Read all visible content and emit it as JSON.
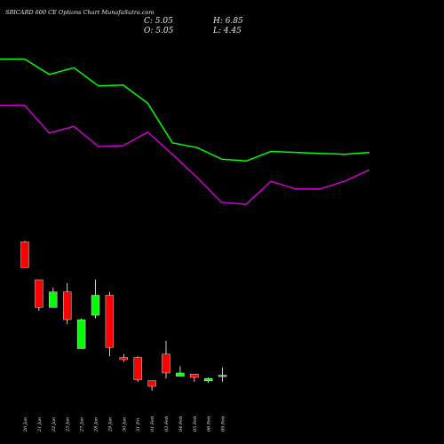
{
  "chart_data": {
    "type": "candlestick",
    "title": "SBICARD 600 CE Options Chart MunafaSutra.com",
    "ohlc_summary": {
      "close": "C: 5.05",
      "high": "H: 6.85",
      "open": "O: 5.05",
      "low": "L: 4.45"
    },
    "x_labels": [
      "20 Jan",
      "21 Jan",
      "22 Jan",
      "23 Jan",
      "27 Jan",
      "28 Jan",
      "29 Jan",
      "30 Jan",
      "31 Fri",
      "01 Feb",
      "03 Feb",
      "04 Feb",
      "05 Feb",
      "06 Feb",
      "09 Feb"
    ],
    "candles": [
      {
        "open": 18.7,
        "high": 18.8,
        "low": 16.4,
        "close": 16.4,
        "color": "red"
      },
      {
        "open": 15.3,
        "high": 15.3,
        "low": 12.5,
        "close": 12.8,
        "color": "red"
      },
      {
        "open": 12.8,
        "high": 14.6,
        "low": 12.8,
        "close": 14.2,
        "color": "green"
      },
      {
        "open": 14.2,
        "high": 15.0,
        "low": 11.3,
        "close": 11.7,
        "color": "red"
      },
      {
        "open": 9.1,
        "high": 11.8,
        "low": 9.1,
        "close": 11.7,
        "color": "green"
      },
      {
        "open": 12.1,
        "high": 15.3,
        "low": 11.8,
        "close": 13.9,
        "color": "green"
      },
      {
        "open": 13.9,
        "high": 14.2,
        "low": 8.4,
        "close": 9.2,
        "color": "red"
      },
      {
        "open": 8.3,
        "high": 8.6,
        "low": 7.9,
        "close": 8.1,
        "color": "red"
      },
      {
        "open": 8.3,
        "high": 8.4,
        "low": 6.1,
        "close": 6.3,
        "color": "red"
      },
      {
        "open": 6.2,
        "high": 6.2,
        "low": 5.3,
        "close": 5.7,
        "color": "red"
      },
      {
        "open": 8.6,
        "high": 9.8,
        "low": 6.4,
        "close": 6.9,
        "color": "red"
      },
      {
        "open": 6.6,
        "high": 7.5,
        "low": 6.6,
        "close": 6.9,
        "color": "green"
      },
      {
        "open": 6.8,
        "high": 6.8,
        "low": 6.1,
        "close": 6.5,
        "color": "red"
      },
      {
        "open": 6.2,
        "high": 6.5,
        "low": 6.0,
        "close": 6.4,
        "color": "green"
      },
      {
        "open": 6.6,
        "high": 7.4,
        "low": 6.1,
        "close": 6.7,
        "color": "green"
      }
    ],
    "candle_price_range": [
      4.5,
      20.5
    ],
    "overlay_lines": [
      {
        "color": "#00ff00",
        "values": [
          94,
          94,
          78,
          85,
          66,
          67,
          48,
          7,
          2,
          -10,
          -12,
          -2,
          -3,
          -4,
          -5,
          -3
        ]
      },
      {
        "color": "#d000d0",
        "values": [
          46,
          46,
          17,
          24,
          3,
          4,
          18,
          -5,
          -29,
          -55,
          -57,
          -33,
          -41,
          -41,
          -33,
          -21
        ]
      }
    ],
    "overlay_range": [
      -80,
      100
    ],
    "colors": {
      "up": "#00ff00",
      "down": "#ff0000",
      "background": "#000000",
      "text": "#e8e8e8"
    },
    "grid": false
  }
}
